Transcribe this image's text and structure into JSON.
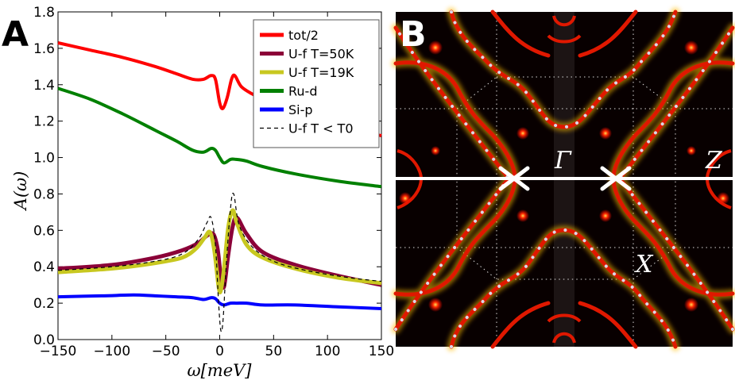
{
  "panels": {
    "a_label": "A",
    "b_label": "B"
  },
  "chart_data": {
    "type": "line",
    "xlabel": "ω[meV]",
    "ylabel": "A(ω)",
    "xlim": [
      -150,
      150
    ],
    "ylim": [
      0.0,
      1.8
    ],
    "xticks": [
      "−150",
      "−100",
      "−50",
      "0",
      "50",
      "100",
      "150"
    ],
    "xtick_values": [
      -150,
      -100,
      -50,
      0,
      50,
      100,
      150
    ],
    "yticks": [
      "0.0",
      "0.2",
      "0.4",
      "0.6",
      "0.8",
      "1.0",
      "1.2",
      "1.4",
      "1.6",
      "1.8"
    ],
    "ytick_values": [
      0.0,
      0.2,
      0.4,
      0.6,
      0.8,
      1.0,
      1.2,
      1.4,
      1.6,
      1.8
    ],
    "legend_position": "top-right",
    "series": [
      {
        "name": "tot/2",
        "color": "#ff0000",
        "style": "solid",
        "x": [
          -150,
          -120,
          -90,
          -60,
          -40,
          -25,
          -15,
          -8,
          -4,
          0,
          3,
          7,
          11,
          14,
          20,
          30,
          50,
          80,
          110,
          150
        ],
        "y": [
          1.63,
          1.59,
          1.55,
          1.5,
          1.46,
          1.43,
          1.43,
          1.45,
          1.43,
          1.3,
          1.27,
          1.33,
          1.43,
          1.45,
          1.39,
          1.35,
          1.29,
          1.22,
          1.17,
          1.12
        ]
      },
      {
        "name": "U-f T=50K",
        "color": "#8b0038",
        "style": "solid",
        "x": [
          -150,
          -100,
          -60,
          -35,
          -20,
          -12,
          -6,
          -2,
          1,
          4,
          8,
          12,
          16,
          25,
          40,
          70,
          110,
          150
        ],
        "y": [
          0.39,
          0.41,
          0.45,
          0.49,
          0.53,
          0.57,
          0.58,
          0.5,
          0.35,
          0.29,
          0.47,
          0.62,
          0.67,
          0.58,
          0.48,
          0.41,
          0.35,
          0.3
        ]
      },
      {
        "name": "U-f T=19K",
        "color": "#c8c820",
        "style": "solid",
        "x": [
          -150,
          -100,
          -60,
          -35,
          -22,
          -14,
          -9,
          -5,
          -1,
          1,
          4,
          8,
          12,
          16,
          25,
          40,
          70,
          110,
          150
        ],
        "y": [
          0.37,
          0.39,
          0.42,
          0.45,
          0.5,
          0.56,
          0.59,
          0.49,
          0.29,
          0.27,
          0.39,
          0.62,
          0.71,
          0.64,
          0.52,
          0.45,
          0.39,
          0.34,
          0.31
        ]
      },
      {
        "name": "Ru-d",
        "color": "#008000",
        "style": "solid",
        "x": [
          -150,
          -120,
          -90,
          -60,
          -40,
          -25,
          -15,
          -8,
          -4,
          0,
          4,
          10,
          15,
          25,
          40,
          70,
          110,
          150
        ],
        "y": [
          1.38,
          1.32,
          1.24,
          1.15,
          1.09,
          1.04,
          1.03,
          1.05,
          1.04,
          1.0,
          0.97,
          0.99,
          0.99,
          0.98,
          0.95,
          0.91,
          0.87,
          0.84
        ]
      },
      {
        "name": "Si-p",
        "color": "#0000ff",
        "style": "solid",
        "x": [
          -150,
          -110,
          -80,
          -60,
          -40,
          -25,
          -15,
          -8,
          -4,
          0,
          4,
          10,
          16,
          25,
          40,
          70,
          110,
          150
        ],
        "y": [
          0.235,
          0.24,
          0.245,
          0.24,
          0.235,
          0.23,
          0.22,
          0.23,
          0.225,
          0.2,
          0.19,
          0.2,
          0.2,
          0.2,
          0.19,
          0.19,
          0.18,
          0.17
        ]
      },
      {
        "name": "U-f T < T0",
        "color": "#000000",
        "style": "dashed",
        "x": [
          -150,
          -100,
          -60,
          -35,
          -20,
          -12,
          -8,
          -4,
          -1,
          1,
          3,
          6,
          10,
          13,
          18,
          30,
          50,
          80,
          120,
          150
        ],
        "y": [
          0.38,
          0.4,
          0.43,
          0.47,
          0.55,
          0.64,
          0.67,
          0.52,
          0.2,
          0.05,
          0.1,
          0.4,
          0.72,
          0.8,
          0.63,
          0.51,
          0.43,
          0.38,
          0.34,
          0.32
        ]
      }
    ]
  },
  "map": {
    "label_gamma": "Γ",
    "label_z": "Z",
    "label_x": "X",
    "colors": {
      "background": "#080000",
      "band": "#dd1500",
      "band_glow": "#ffcc00",
      "dots": "#d9d9e6",
      "path": "#ffffff"
    }
  }
}
